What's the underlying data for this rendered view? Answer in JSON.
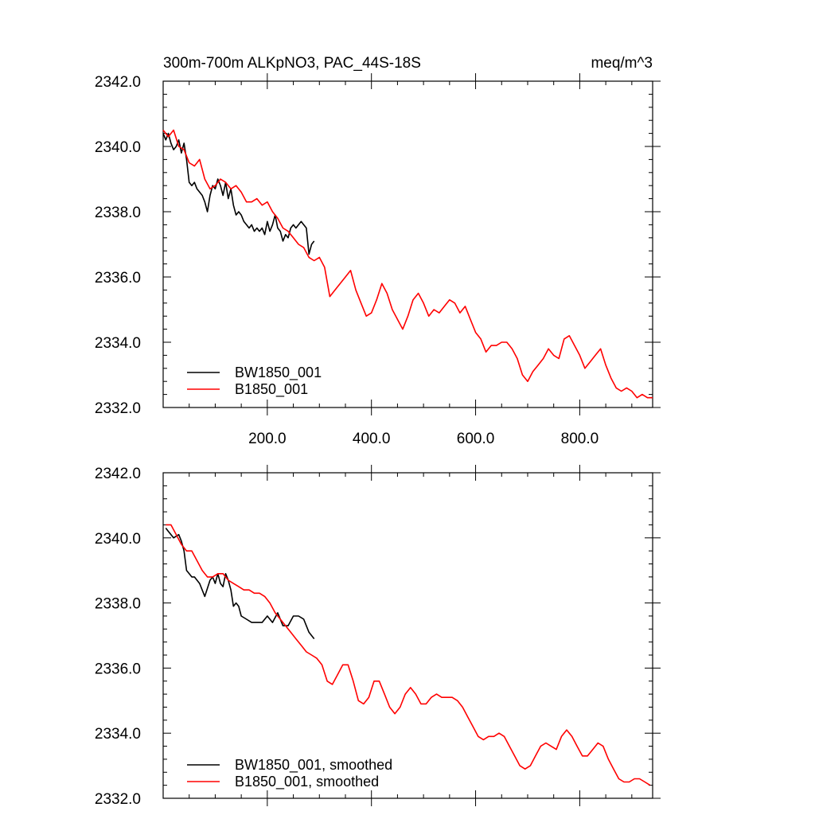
{
  "header": {
    "title_left": "300m-700m ALKpNO3, PAC_44S-18S",
    "title_right": "meq/m^3"
  },
  "colors": {
    "BW1850_001": "#000000",
    "B1850_001": "#ff0000"
  },
  "chart_data": [
    {
      "type": "line",
      "title": "300m-700m ALKpNO3, PAC_44S-18S",
      "units": "meq/m^3",
      "xlim": [
        0,
        940
      ],
      "ylim": [
        2332,
        2342
      ],
      "xticks": [
        200,
        400,
        600,
        800
      ],
      "xtick_labels": [
        "200.0",
        "400.0",
        "600.0",
        "800.0"
      ],
      "yticks": [
        2332,
        2334,
        2336,
        2338,
        2340,
        2342
      ],
      "ytick_labels": [
        "2332.0",
        "2334.0",
        "2336.0",
        "2338.0",
        "2340.0",
        "2342.0"
      ],
      "legend_position": "bottom-left",
      "series": [
        {
          "name": "BW1850_001",
          "color": "#000000",
          "x": [
            0,
            5,
            10,
            15,
            20,
            25,
            30,
            35,
            40,
            45,
            50,
            55,
            60,
            65,
            70,
            75,
            80,
            85,
            90,
            95,
            100,
            105,
            110,
            115,
            120,
            125,
            130,
            135,
            140,
            145,
            150,
            155,
            160,
            165,
            170,
            175,
            180,
            185,
            190,
            195,
            200,
            205,
            210,
            215,
            220,
            225,
            230,
            235,
            240,
            245,
            250,
            255,
            260,
            265,
            270,
            275,
            280,
            285,
            290
          ],
          "values": [
            2340.4,
            2340.2,
            2340.4,
            2340.1,
            2339.9,
            2340.0,
            2340.2,
            2339.8,
            2340.1,
            2339.6,
            2338.9,
            2338.8,
            2338.9,
            2338.7,
            2338.6,
            2338.5,
            2338.3,
            2338.0,
            2338.5,
            2338.8,
            2338.7,
            2339.0,
            2338.8,
            2338.5,
            2338.9,
            2338.4,
            2338.7,
            2338.2,
            2337.9,
            2338.0,
            2337.9,
            2337.7,
            2337.6,
            2337.5,
            2337.6,
            2337.4,
            2337.5,
            2337.4,
            2337.5,
            2337.3,
            2337.7,
            2337.4,
            2337.6,
            2337.9,
            2337.5,
            2337.4,
            2337.1,
            2337.3,
            2337.2,
            2337.5,
            2337.6,
            2337.5,
            2337.6,
            2337.7,
            2337.6,
            2337.5,
            2336.7,
            2337.0,
            2337.1
          ]
        },
        {
          "name": "B1850_001",
          "color": "#ff0000",
          "x": [
            0,
            10,
            20,
            30,
            40,
            50,
            60,
            70,
            80,
            90,
            100,
            110,
            120,
            130,
            140,
            150,
            160,
            170,
            180,
            190,
            200,
            210,
            220,
            230,
            240,
            250,
            260,
            270,
            280,
            290,
            300,
            310,
            320,
            330,
            340,
            350,
            360,
            370,
            380,
            390,
            400,
            410,
            420,
            430,
            440,
            450,
            460,
            470,
            480,
            490,
            500,
            510,
            520,
            530,
            540,
            550,
            560,
            570,
            580,
            590,
            600,
            610,
            620,
            630,
            640,
            650,
            660,
            670,
            680,
            690,
            700,
            710,
            720,
            730,
            740,
            750,
            760,
            770,
            780,
            790,
            800,
            810,
            820,
            830,
            840,
            850,
            860,
            870,
            880,
            890,
            900,
            910,
            920,
            930,
            940
          ],
          "values": [
            2340.5,
            2340.3,
            2340.5,
            2340.0,
            2339.9,
            2339.5,
            2339.4,
            2339.6,
            2339.0,
            2338.7,
            2338.8,
            2339.0,
            2338.9,
            2338.7,
            2338.8,
            2338.6,
            2338.3,
            2338.3,
            2338.4,
            2338.2,
            2338.3,
            2338.0,
            2337.8,
            2337.5,
            2337.4,
            2337.2,
            2337.0,
            2336.9,
            2336.6,
            2336.5,
            2336.6,
            2336.3,
            2335.4,
            2335.6,
            2335.8,
            2336.0,
            2336.2,
            2335.6,
            2335.2,
            2334.8,
            2334.9,
            2335.3,
            2335.8,
            2335.5,
            2335.0,
            2334.7,
            2334.4,
            2334.8,
            2335.3,
            2335.5,
            2335.2,
            2334.8,
            2335.0,
            2334.9,
            2335.1,
            2335.3,
            2335.2,
            2334.9,
            2335.1,
            2334.7,
            2334.3,
            2334.1,
            2333.7,
            2333.9,
            2333.9,
            2334.0,
            2334.0,
            2333.8,
            2333.5,
            2333.0,
            2332.8,
            2333.1,
            2333.3,
            2333.5,
            2333.8,
            2333.6,
            2333.5,
            2334.1,
            2334.2,
            2333.9,
            2333.6,
            2333.2,
            2333.4,
            2333.6,
            2333.8,
            2333.3,
            2332.9,
            2332.6,
            2332.5,
            2332.6,
            2332.5,
            2332.3,
            2332.4,
            2332.3,
            2332.3
          ]
        }
      ]
    },
    {
      "type": "line",
      "xlim": [
        0,
        940
      ],
      "ylim": [
        2332,
        2342
      ],
      "xticks": [
        200,
        400,
        600,
        800
      ],
      "yticks": [
        2332,
        2334,
        2336,
        2338,
        2340,
        2342
      ],
      "ytick_labels": [
        "2332.0",
        "2334.0",
        "2336.0",
        "2338.0",
        "2340.0",
        "2342.0"
      ],
      "legend_position": "bottom-left",
      "series": [
        {
          "name": "BW1850_001, smoothed",
          "color": "#000000",
          "x": [
            5,
            10,
            20,
            30,
            35,
            40,
            45,
            50,
            55,
            60,
            70,
            80,
            90,
            95,
            100,
            105,
            110,
            115,
            120,
            125,
            130,
            135,
            140,
            145,
            150,
            160,
            170,
            180,
            190,
            200,
            210,
            220,
            230,
            240,
            250,
            260,
            270,
            280,
            290
          ],
          "values": [
            2340.3,
            2340.2,
            2340.0,
            2340.1,
            2339.9,
            2339.6,
            2339.0,
            2338.9,
            2338.8,
            2338.8,
            2338.6,
            2338.2,
            2338.7,
            2338.8,
            2338.6,
            2338.9,
            2338.6,
            2338.5,
            2338.9,
            2338.7,
            2338.4,
            2337.9,
            2338.0,
            2337.9,
            2337.6,
            2337.5,
            2337.4,
            2337.4,
            2337.4,
            2337.6,
            2337.4,
            2337.7,
            2337.3,
            2337.3,
            2337.6,
            2337.6,
            2337.5,
            2337.1,
            2336.9
          ]
        },
        {
          "name": "B1850_001, smoothed",
          "color": "#ff0000",
          "x": [
            5,
            15,
            25,
            35,
            45,
            55,
            65,
            75,
            85,
            95,
            105,
            115,
            125,
            135,
            145,
            155,
            165,
            175,
            185,
            195,
            205,
            215,
            225,
            235,
            245,
            255,
            265,
            275,
            285,
            295,
            305,
            315,
            325,
            335,
            345,
            355,
            365,
            375,
            385,
            395,
            405,
            415,
            425,
            435,
            445,
            455,
            465,
            475,
            485,
            495,
            505,
            515,
            525,
            535,
            545,
            555,
            565,
            575,
            585,
            595,
            605,
            615,
            625,
            635,
            645,
            655,
            665,
            675,
            685,
            695,
            705,
            715,
            725,
            735,
            745,
            755,
            765,
            775,
            785,
            795,
            805,
            815,
            825,
            835,
            845,
            855,
            865,
            875,
            885,
            895,
            905,
            915,
            925,
            935
          ],
          "values": [
            2340.4,
            2340.4,
            2340.1,
            2339.8,
            2339.6,
            2339.6,
            2339.3,
            2339.0,
            2338.8,
            2338.8,
            2338.9,
            2338.9,
            2338.7,
            2338.6,
            2338.5,
            2338.4,
            2338.4,
            2338.3,
            2338.3,
            2338.2,
            2338.0,
            2337.7,
            2337.5,
            2337.3,
            2337.1,
            2336.9,
            2336.7,
            2336.5,
            2336.4,
            2336.3,
            2336.1,
            2335.6,
            2335.5,
            2335.8,
            2336.1,
            2336.1,
            2335.6,
            2335.0,
            2334.9,
            2335.1,
            2335.6,
            2335.6,
            2335.2,
            2334.8,
            2334.6,
            2334.8,
            2335.2,
            2335.4,
            2335.2,
            2334.9,
            2334.9,
            2335.1,
            2335.2,
            2335.1,
            2335.1,
            2335.1,
            2335.0,
            2334.8,
            2334.5,
            2334.2,
            2333.9,
            2333.8,
            2333.9,
            2333.9,
            2334.0,
            2333.9,
            2333.6,
            2333.3,
            2333.0,
            2332.9,
            2333.0,
            2333.3,
            2333.6,
            2333.7,
            2333.6,
            2333.5,
            2333.9,
            2334.1,
            2333.9,
            2333.6,
            2333.3,
            2333.3,
            2333.5,
            2333.7,
            2333.6,
            2333.2,
            2332.9,
            2332.6,
            2332.5,
            2332.5,
            2332.6,
            2332.6,
            2332.5,
            2332.4
          ]
        }
      ]
    }
  ]
}
